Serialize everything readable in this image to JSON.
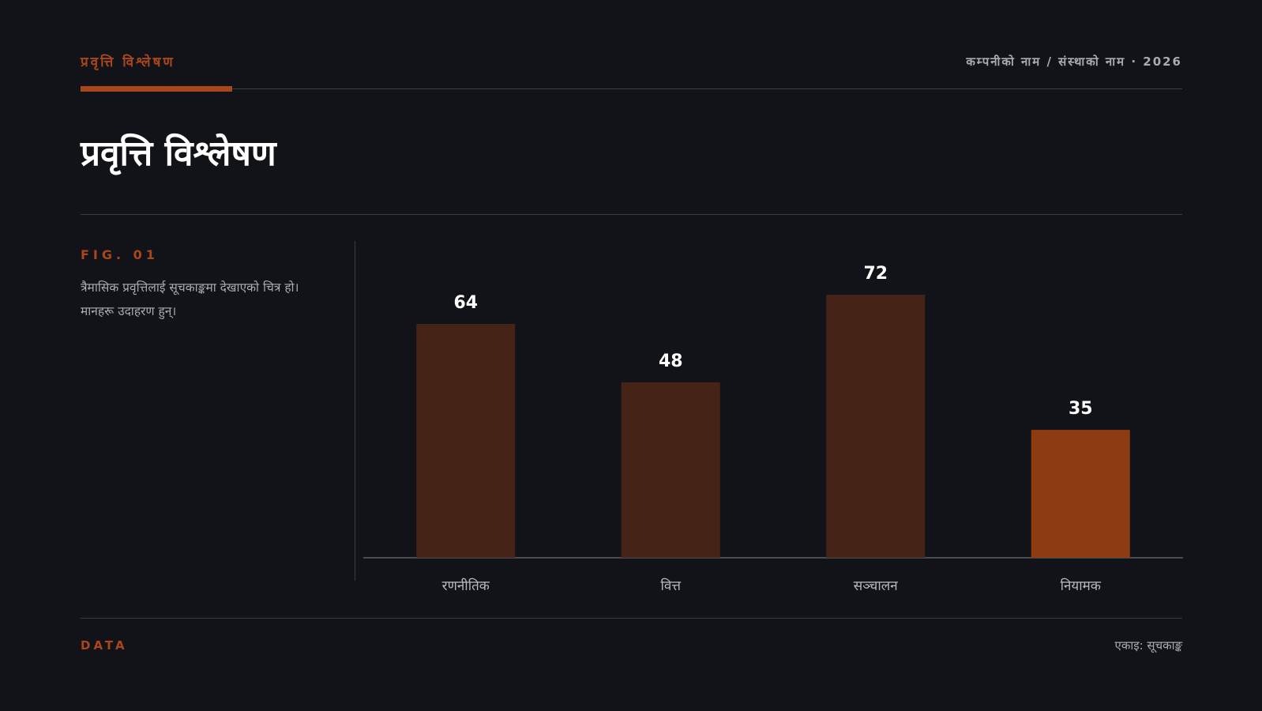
{
  "header": {
    "kicker": "प्रवृत्ति विश्लेषण",
    "meta": "कम्पनीको नाम / संस्थाको नाम · 2026"
  },
  "title": "प्रवृत्ति विश्लेषण",
  "figure": {
    "label": "FIG. 01",
    "description": "त्रैमासिक प्रवृत्तिलाई सूचकाङ्कमा देखाएको चित्र हो। मानहरू उदाहरण हुन्।"
  },
  "footer": {
    "left": "DATA",
    "right": "एकाइ: सूचकाङ्क"
  },
  "colors": {
    "bar": "#452317",
    "highlight": "#8c3c10",
    "accent": "#a9471b",
    "axis": "#4a4c54",
    "label": "#ffffff",
    "category": "#b8bac2"
  },
  "chart_data": {
    "type": "bar",
    "categories": [
      "रणनीतिक",
      "वित्त",
      "सञ्चालन",
      "नियामक"
    ],
    "values": [
      64,
      48,
      72,
      35
    ],
    "highlight_index": 3,
    "ylim": [
      0,
      80
    ],
    "title": "",
    "xlabel": "",
    "ylabel": "",
    "grid": false
  }
}
